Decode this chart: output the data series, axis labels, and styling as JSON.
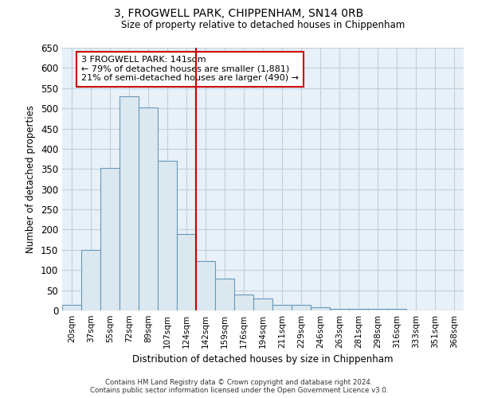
{
  "title": "3, FROGWELL PARK, CHIPPENHAM, SN14 0RB",
  "subtitle": "Size of property relative to detached houses in Chippenham",
  "xlabel": "Distribution of detached houses by size in Chippenham",
  "ylabel": "Number of detached properties",
  "bar_labels": [
    "20sqm",
    "37sqm",
    "55sqm",
    "72sqm",
    "89sqm",
    "107sqm",
    "124sqm",
    "142sqm",
    "159sqm",
    "176sqm",
    "194sqm",
    "211sqm",
    "229sqm",
    "246sqm",
    "263sqm",
    "281sqm",
    "298sqm",
    "316sqm",
    "333sqm",
    "351sqm",
    "368sqm"
  ],
  "bar_values": [
    13,
    150,
    353,
    530,
    503,
    370,
    190,
    122,
    78,
    40,
    30,
    13,
    13,
    8,
    3,
    3,
    3,
    3,
    0,
    0,
    0
  ],
  "bar_color": "#dce8f0",
  "bar_edge_color": "#6699bb",
  "vline_x_idx": 7,
  "vline_color": "#cc0000",
  "ylim": [
    0,
    650
  ],
  "yticks": [
    0,
    50,
    100,
    150,
    200,
    250,
    300,
    350,
    400,
    450,
    500,
    550,
    600,
    650
  ],
  "annotation_title": "3 FROGWELL PARK: 141sqm",
  "annotation_line1": "← 79% of detached houses are smaller (1,881)",
  "annotation_line2": "21% of semi-detached houses are larger (490) →",
  "annotation_box_color": "#ffffff",
  "annotation_box_edge": "#cc0000",
  "footer_line1": "Contains HM Land Registry data © Crown copyright and database right 2024.",
  "footer_line2": "Contains public sector information licensed under the Open Government Licence v3.0.",
  "plot_bg_color": "#e8f0f8",
  "fig_bg_color": "#ffffff",
  "grid_color": "#c0d0e0"
}
